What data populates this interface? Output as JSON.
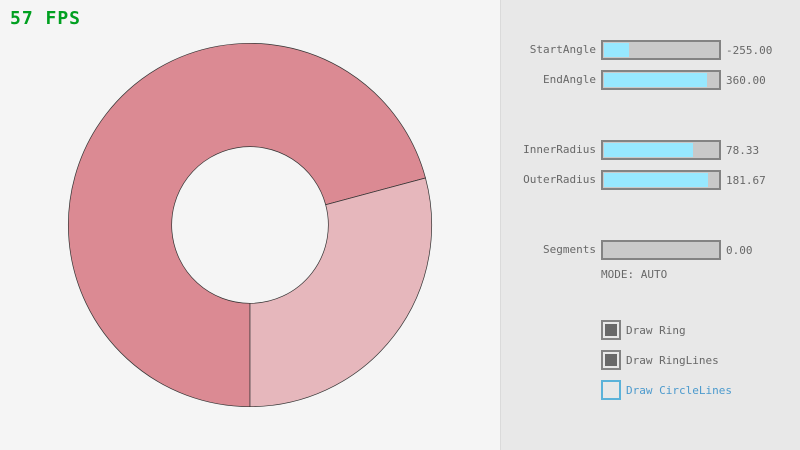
{
  "fps": "57 FPS",
  "colors": {
    "ring_main": "#db8a93",
    "ring_light": "#e6b7bc",
    "slider_fill": "#97e8ff"
  },
  "ring": {
    "start_angle": -255.0,
    "end_angle": 360.0,
    "inner_radius": 78.33,
    "outer_radius": 181.67
  },
  "sliders": [
    {
      "label": "StartAngle",
      "value": "-255.00",
      "fraction": 0.217
    },
    {
      "label": "EndAngle",
      "value": "360.00",
      "fraction": 0.9
    },
    {
      "label": "InnerRadius",
      "value": "78.33",
      "fraction": 0.783
    },
    {
      "label": "OuterRadius",
      "value": "181.67",
      "fraction": 0.908
    },
    {
      "label": "Segments",
      "value": "0.00",
      "fraction": 0
    }
  ],
  "mode": "MODE: AUTO",
  "checkboxes": [
    {
      "label": "Draw Ring",
      "checked": true
    },
    {
      "label": "Draw RingLines",
      "checked": true
    },
    {
      "label": "Draw CircleLines",
      "checked": false
    }
  ]
}
